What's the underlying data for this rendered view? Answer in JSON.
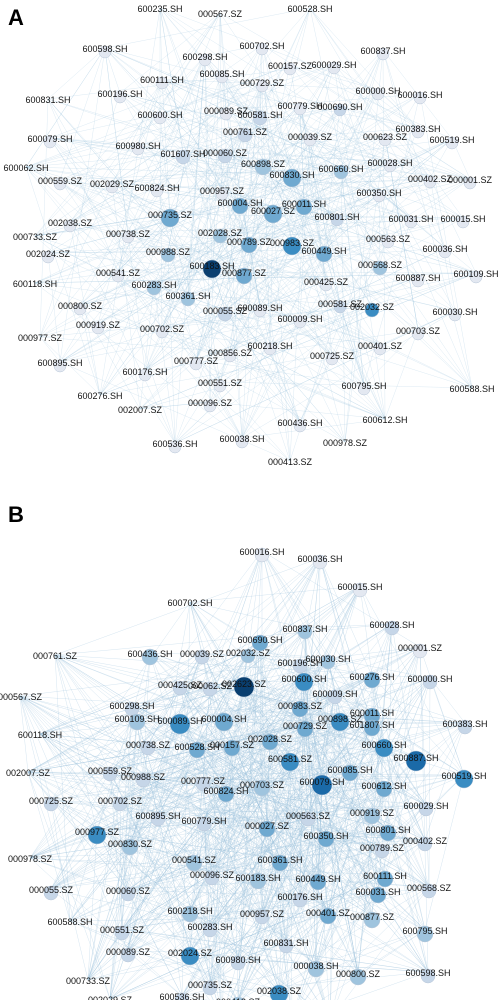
{
  "panels": [
    {
      "id": "a",
      "letter": "A",
      "nodes": [
        "600235.SH",
        "000567.SZ",
        "600528.SH",
        "600598.SH",
        "600298.SH",
        "600702.SH",
        "600837.SH",
        "600111.SH",
        "600085.SH",
        "000729.SZ",
        "600157.SZ",
        "600029.SH",
        "600196.SH",
        "600000.SH",
        "600016.SH",
        "600831.SH",
        "600600.SH",
        "000089.SZ",
        "600581.SH",
        "600779.SH",
        "000690.SH",
        "600383.SH",
        "600079.SH",
        "600980.SH",
        "000761.SZ",
        "000039.SZ",
        "000623.SZ",
        "600519.SH",
        "601607.SH",
        "000060.SZ",
        "600062.SH",
        "600898.SZ",
        "600028.SH",
        "000559.SZ",
        "002029.SZ",
        "600824.SH",
        "000957.SZ",
        "600830.SH",
        "600660.SH",
        "000402.SZ",
        "000001.SZ",
        "600350.SH",
        "002038.SZ",
        "000735.SZ",
        "600004.SH",
        "600027.SZ",
        "600011.SH",
        "600801.SH",
        "600031.SH",
        "600015.SH",
        "000733.SZ",
        "000738.SZ",
        "002028.SZ",
        "000563.SZ",
        "002024.SZ",
        "000988.SZ",
        "000789.SZ",
        "000983.SZ",
        "600449.SH",
        "600036.SH",
        "600183.SH",
        "000568.SZ",
        "000541.SZ",
        "000877.SZ",
        "600118.SH",
        "600283.SH",
        "600887.SH",
        "600109.SH",
        "000425.SZ",
        "600361.SH",
        "000800.SZ",
        "000581.SZ",
        "002032.SZ",
        "000055.SZ",
        "600089.SH",
        "600030.SH",
        "600009.SH",
        "000919.SZ",
        "000977.SZ",
        "000702.SZ",
        "000703.SZ",
        "600218.SH",
        "000401.SZ",
        "600895.SH",
        "000856.SZ",
        "000777.SZ",
        "000725.SZ",
        "600176.SH",
        "000551.SZ",
        "600795.SH",
        "600588.SH",
        "600276.SH",
        "002007.SZ",
        "000096.SZ",
        "600436.SH",
        "600612.SH",
        "600536.SH",
        "600038.SH",
        "000978.SZ",
        "000413.SZ"
      ]
    },
    {
      "id": "b",
      "letter": "B",
      "nodes": [
        "600016.SH",
        "600036.SH",
        "600702.SH",
        "600015.SH",
        "600028.SH",
        "600837.SH",
        "000001.SZ",
        "000761.SZ",
        "600436.SH",
        "000039.SZ",
        "002032.SZ",
        "600690.SH",
        "600030.SH",
        "600196.SH",
        "600000.SH",
        "600276.SH",
        "000567.SZ",
        "000425.SZ",
        "000062.SZ",
        "002623.SZ",
        "600600.SH",
        "600009.SH",
        "600011.SH",
        "600298.SH",
        "000983.SZ",
        "000898.SZ",
        "600383.SH",
        "600109.SH",
        "600089.SH",
        "600004.SH",
        "000729.SZ",
        "601807.SH",
        "600118.SH",
        "600660.SH",
        "000738.SZ",
        "600528.SH",
        "000157.SZ",
        "002028.SZ",
        "600581.SZ",
        "600887.SH",
        "002007.SZ",
        "000559.SZ",
        "000988.SZ",
        "000777.SZ",
        "600085.SH",
        "600519.SH",
        "600612.SH",
        "000725.SZ",
        "000702.SZ",
        "600824.SH",
        "000703.SZ",
        "600079.SH",
        "600029.SH",
        "600895.SH",
        "000563.SZ",
        "000919.SZ",
        "600801.SH",
        "000977.SZ",
        "600779.SH",
        "000027.SZ",
        "600350.SH",
        "000789.SZ",
        "000402.SZ",
        "000830.SZ",
        "600361.SH",
        "000978.SZ",
        "000541.SZ",
        "000096.SZ",
        "600183.SH",
        "600449.SH",
        "600111.SH",
        "000055.SZ",
        "600176.SH",
        "600031.SH",
        "000568.SZ",
        "000060.SZ",
        "600218.SH",
        "000957.SZ",
        "000401.SZ",
        "000877.SZ",
        "600588.SH",
        "000551.SZ",
        "600283.SH",
        "600795.SH",
        "000089.SZ",
        "600831.SH",
        "002024.SZ",
        "600980.SH",
        "600598.SH",
        "000733.SZ",
        "000735.SZ",
        "000038.SH",
        "000800.SZ",
        "002029.SZ",
        "600536.SH",
        "002038.SZ",
        "000413.SZ",
        "600235.SH",
        "600581.SH",
        "000856.SZ"
      ]
    }
  ],
  "colors": {
    "edge": "#9ec3dd",
    "node_levels": [
      "#e3e8f1",
      "#c6d6e8",
      "#9fc4de",
      "#6fa9d0",
      "#3a8cc2",
      "#1b6aa8",
      "#0a3f70"
    ],
    "label": "#111111"
  }
}
